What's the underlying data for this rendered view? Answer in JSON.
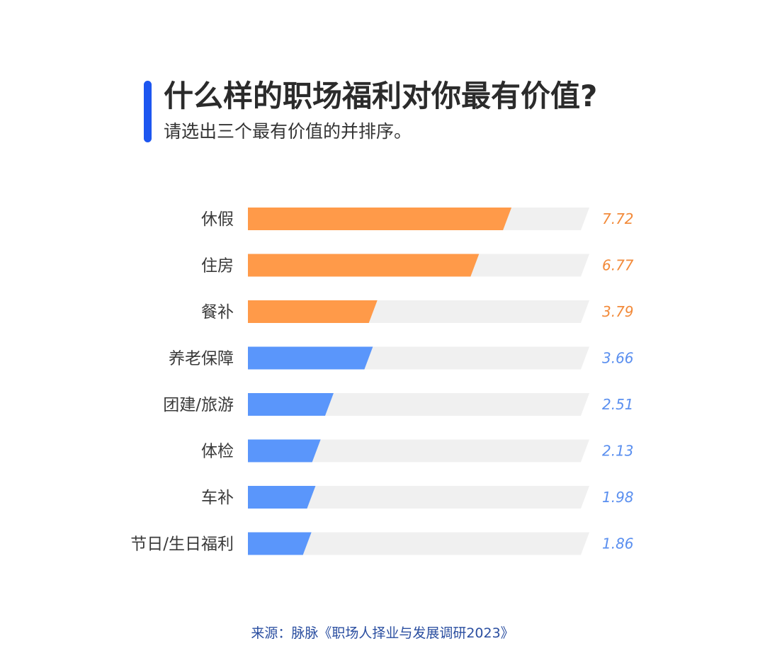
{
  "title": "什么样的职场福利对你最有价值?",
  "subtitle": "请选出三个最有价值的并排序。",
  "source": "来源：脉脉《职场人择业与发展调研2023》",
  "colors": {
    "accent": "#1d56f0",
    "top_bar": "#ff9a49",
    "other_bar": "#5a96fb",
    "track": "#f0f0f0",
    "top_value": "#f28a3a",
    "other_value": "#5a8fef"
  },
  "chart_data": {
    "type": "bar",
    "orientation": "horizontal",
    "categories": [
      "休假",
      "住房",
      "餐补",
      "养老保障",
      "团建/旅游",
      "体检",
      "车补",
      "节日/生日福利"
    ],
    "values": [
      7.72,
      6.77,
      3.79,
      3.66,
      2.51,
      2.13,
      1.98,
      1.86
    ],
    "value_labels": [
      "7.72",
      "6.77",
      "3.79",
      "3.66",
      "2.51",
      "2.13",
      "1.98",
      "1.86"
    ],
    "highlight_count": 3,
    "xlim": [
      0,
      10
    ],
    "grid": false,
    "legend": "none"
  }
}
